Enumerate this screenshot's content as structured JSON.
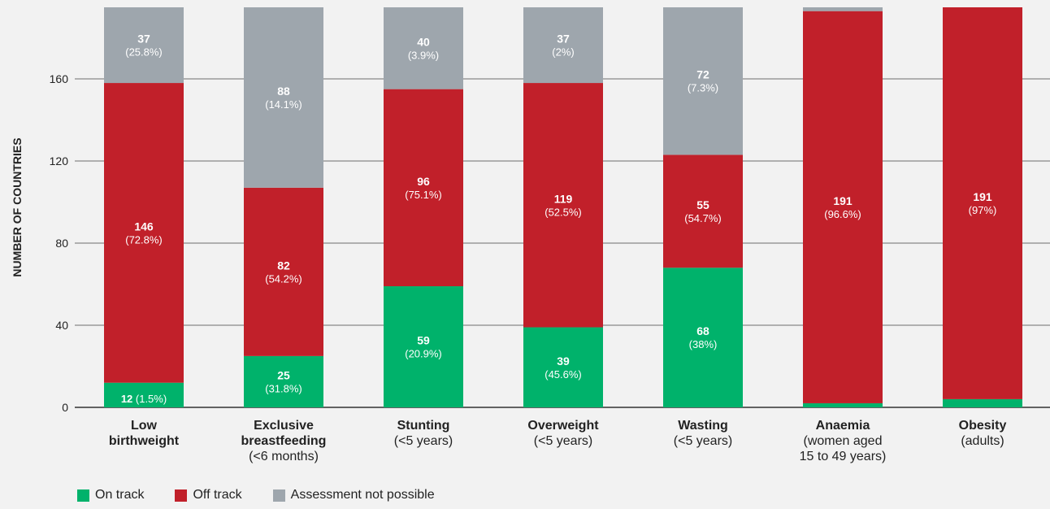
{
  "chart_data": {
    "type": "bar",
    "stacked": true,
    "ylabel": "NUMBER OF COUNTRIES",
    "yticks": [
      0,
      40,
      80,
      120,
      160
    ],
    "ylim": [
      0,
      195
    ],
    "grid": true,
    "categories": [
      [
        "Low",
        "birthweight"
      ],
      [
        "Exclusive",
        "breastfeeding",
        "(<6 months)"
      ],
      [
        "Stunting",
        "(<5 years)"
      ],
      [
        "Overweight",
        "(<5 years)"
      ],
      [
        "Wasting",
        "(<5 years)"
      ],
      [
        "Anaemia",
        "(women aged",
        "15 to 49 years)"
      ],
      [
        "Obesity",
        "(adults)"
      ]
    ],
    "series": [
      {
        "name": "On track",
        "color": "#00b26b",
        "values": [
          12,
          25,
          59,
          39,
          68,
          2,
          4
        ],
        "labels": [
          "12",
          "25",
          "59",
          "39",
          "68",
          "",
          ""
        ],
        "pct": [
          "(1.5%)",
          "(31.8%)",
          "(20.9%)",
          "(45.6%)",
          "(38%)",
          "",
          ""
        ]
      },
      {
        "name": "Off track",
        "color": "#c1202a",
        "values": [
          146,
          82,
          96,
          119,
          55,
          191,
          191
        ],
        "labels": [
          "146",
          "82",
          "96",
          "119",
          "55",
          "191",
          "191"
        ],
        "pct": [
          "(72.8%)",
          "(54.2%)",
          "(75.1%)",
          "(52.5%)",
          "(54.7%)",
          "(96.6%)",
          "(97%)"
        ]
      },
      {
        "name": "Assessment not possible",
        "color": "#9ea6ad",
        "values": [
          37,
          88,
          40,
          37,
          72,
          2,
          0
        ],
        "labels": [
          "37",
          "88",
          "40",
          "37",
          "72",
          "",
          ""
        ],
        "pct": [
          "(25.8%)",
          "(14.1%)",
          "(3.9%)",
          "(2%)",
          "(7.3%)",
          "",
          ""
        ]
      }
    ],
    "legend_position": "bottom-left"
  },
  "legend": [
    {
      "label": "On track",
      "color": "#00b26b"
    },
    {
      "label": "Off track",
      "color": "#c1202a"
    },
    {
      "label": "Assessment not possible",
      "color": "#9ea6ad"
    }
  ]
}
